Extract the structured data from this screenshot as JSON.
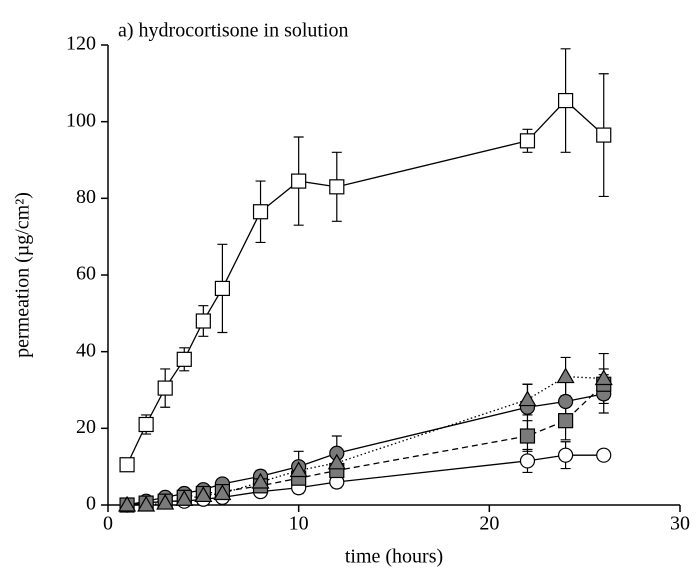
{
  "chart_data": {
    "type": "line",
    "title": "a) hydrocortisone in solution",
    "x_label": "time (hours)",
    "y_label": "permeation (µg/cm²)",
    "x": [
      1,
      2,
      3,
      4,
      5,
      6,
      8,
      10,
      12,
      22,
      24,
      26
    ],
    "xlim": [
      0,
      30
    ],
    "xticks": [
      0,
      10,
      20,
      30
    ],
    "ylim": [
      0,
      120
    ],
    "yticks": [
      0,
      20,
      40,
      60,
      80,
      100,
      120
    ],
    "series": [
      {
        "color": "#000000",
        "marker": "square",
        "marker_fill": "#ffffff",
        "dash": "solid",
        "values": [
          10.5,
          21,
          30.5,
          38,
          48,
          56.5,
          76.5,
          84.5,
          83,
          95,
          105.5,
          96.5
        ],
        "errors": [
          1,
          2.5,
          5,
          3,
          4,
          11.5,
          8,
          11.5,
          9,
          3,
          13.5,
          16
        ]
      },
      {
        "color": "#000000",
        "marker": "circle",
        "marker_fill": "#ffffff",
        "dash": "solid",
        "values": [
          0,
          0.5,
          1,
          1,
          1.5,
          2,
          3.5,
          4.5,
          6,
          11.5,
          13,
          13
        ],
        "errors": [
          0.5,
          0.5,
          0.5,
          0.5,
          0.5,
          1,
          1,
          1.5,
          1.5,
          3,
          3.5,
          0.5
        ]
      },
      {
        "color": "#000000",
        "marker": "circle",
        "marker_fill": "#7a7a7a",
        "dash": "solid",
        "values": [
          0,
          1,
          2,
          3,
          4,
          5.5,
          7.5,
          10,
          13.5,
          25.5,
          27,
          29
        ],
        "errors": [
          0.5,
          1,
          1,
          1,
          1,
          1,
          1.5,
          4,
          4.5,
          6,
          5,
          5
        ]
      },
      {
        "color": "#000000",
        "marker": "square",
        "marker_fill": "#7a7a7a",
        "dash": "dashed",
        "values": [
          0,
          0.5,
          1,
          2,
          3,
          3.5,
          5,
          7,
          9,
          18,
          22,
          31.5
        ],
        "errors": [
          0.5,
          0.5,
          0.5,
          0.5,
          0.5,
          1,
          1,
          2,
          2,
          4,
          5,
          4
        ]
      },
      {
        "color": "#000000",
        "marker": "triangle",
        "marker_fill": "#7a7a7a",
        "dash": "dotted",
        "values": [
          0,
          0,
          0.5,
          1.5,
          2.5,
          3,
          6,
          9,
          11,
          27.5,
          33.5,
          33
        ],
        "errors": [
          0.5,
          0.5,
          0.5,
          0.5,
          0.5,
          1,
          1,
          2,
          3,
          4,
          5,
          6.5
        ]
      }
    ]
  }
}
